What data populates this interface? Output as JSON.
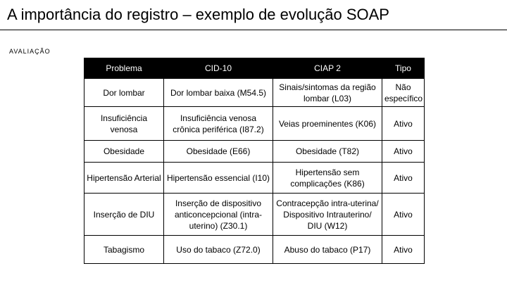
{
  "title": "A importância do registro – exemplo de evolução SOAP",
  "section_label": "AVALIAÇÃO",
  "table": {
    "headers": [
      "Problema",
      "CID-10",
      "CIAP 2",
      "Tipo"
    ],
    "rows": [
      [
        "Dor lombar",
        "Dor lombar baixa (M54.5)",
        "Sinais/sintomas da região lombar (L03)",
        "Não específico"
      ],
      [
        "Insuficiência venosa",
        "Insuficiência venosa crônica periférica (I87.2)",
        "Veias proeminentes (K06)",
        "Ativo"
      ],
      [
        "Obesidade",
        "Obesidade (E66)",
        "Obesidade (T82)",
        "Ativo"
      ],
      [
        "Hipertensão Arterial",
        "Hipertensão essencial (I10)",
        "Hipertensão sem complicações (K86)",
        "Ativo"
      ],
      [
        "Inserção de DIU",
        "Inserção de dispositivo anticoncepcional (intra-uterino) (Z30.1)",
        "Contracepção intra-uterina/ Dispositivo Intrauterino/ DIU (W12)",
        "Ativo"
      ],
      [
        "Tabagismo",
        "Uso do tabaco (Z72.0)",
        "Abuso do tabaco (P17)",
        "Ativo"
      ]
    ]
  }
}
